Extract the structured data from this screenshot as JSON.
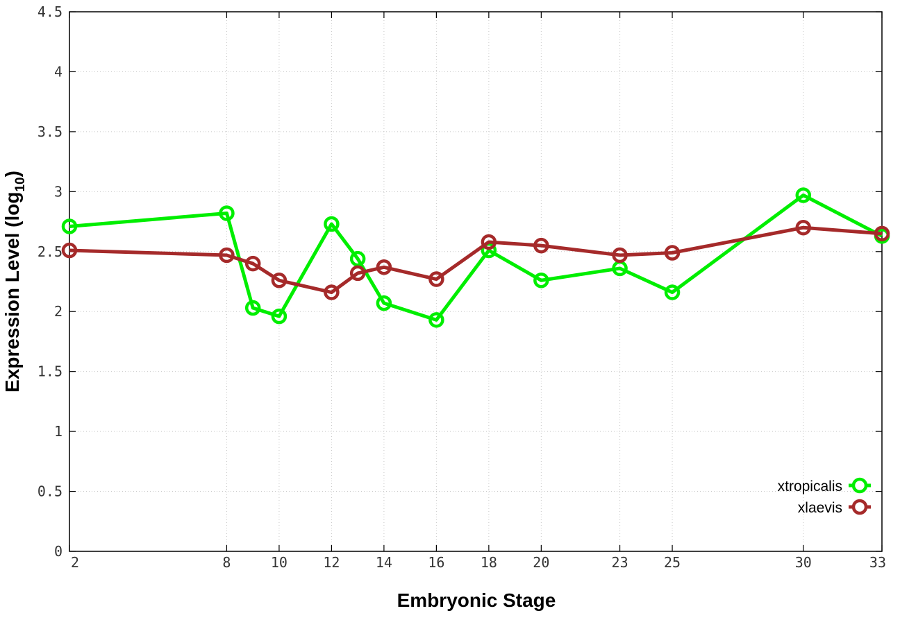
{
  "chart_data": {
    "type": "line",
    "title": "",
    "xlabel": "Embryonic Stage",
    "ylabel": "Expression Level (log",
    "ylabel_subscript": "10",
    "ylabel_close": ")",
    "xlim": [
      2,
      33
    ],
    "ylim": [
      0,
      4.5
    ],
    "grid": true,
    "legend_position": "bottom-right",
    "x_ticks": [
      2,
      8,
      10,
      12,
      14,
      16,
      18,
      20,
      23,
      25,
      30,
      33
    ],
    "y_ticks": [
      0,
      0.5,
      1,
      1.5,
      2,
      2.5,
      3,
      3.5,
      4,
      4.5
    ],
    "x_tick_labels": [
      "2",
      "8",
      "10",
      "12",
      "14",
      "16",
      "18",
      "20",
      "23",
      "25",
      "30",
      "33"
    ],
    "y_tick_labels": [
      "0",
      "0.5",
      "1",
      "1.5",
      "2",
      "2.5",
      "3",
      "3.5",
      "4",
      "4.5"
    ],
    "series": [
      {
        "name": "xtropicalis",
        "color": "#00ee00",
        "marker": "open-circle",
        "x": [
          2,
          8,
          9,
          10,
          12,
          13,
          14,
          16,
          18,
          20,
          23,
          25,
          30,
          33
        ],
        "y": [
          2.71,
          2.82,
          2.03,
          1.96,
          2.73,
          2.44,
          2.07,
          1.93,
          2.51,
          2.26,
          2.36,
          2.16,
          2.97,
          2.63
        ]
      },
      {
        "name": "xlaevis",
        "color": "#a52a2a",
        "marker": "open-circle",
        "x": [
          2,
          8,
          9,
          10,
          12,
          13,
          14,
          16,
          18,
          20,
          23,
          25,
          30,
          33
        ],
        "y": [
          2.51,
          2.47,
          2.4,
          2.26,
          2.16,
          2.32,
          2.37,
          2.27,
          2.58,
          2.55,
          2.47,
          2.49,
          2.7,
          2.65
        ]
      }
    ]
  }
}
